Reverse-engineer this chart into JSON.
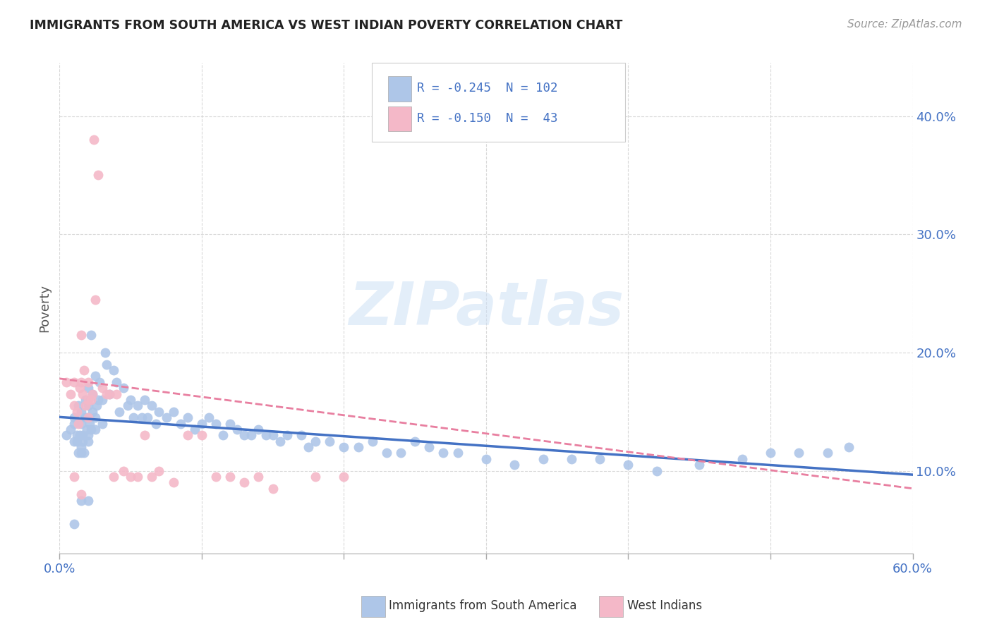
{
  "title": "IMMIGRANTS FROM SOUTH AMERICA VS WEST INDIAN POVERTY CORRELATION CHART",
  "source": "Source: ZipAtlas.com",
  "ylabel": "Poverty",
  "right_yticks": [
    0.1,
    0.2,
    0.3,
    0.4
  ],
  "right_yticklabels": [
    "10.0%",
    "20.0%",
    "30.0%",
    "40.0%"
  ],
  "xlim": [
    0.0,
    0.6
  ],
  "ylim": [
    0.03,
    0.445
  ],
  "watermark": "ZIPatlas",
  "color_blue": "#aec6e8",
  "color_pink": "#f4b8c8",
  "color_blue_dark": "#4472c4",
  "color_pink_dark": "#e87fa0",
  "color_text": "#4472c4",
  "background": "#ffffff",
  "grid_color": "#d0d0d0",
  "sa_x": [
    0.005,
    0.008,
    0.01,
    0.01,
    0.01,
    0.012,
    0.012,
    0.013,
    0.013,
    0.014,
    0.015,
    0.015,
    0.015,
    0.015,
    0.016,
    0.016,
    0.017,
    0.018,
    0.018,
    0.019,
    0.02,
    0.02,
    0.02,
    0.02,
    0.02,
    0.021,
    0.022,
    0.022,
    0.023,
    0.023,
    0.025,
    0.025,
    0.025,
    0.026,
    0.027,
    0.028,
    0.03,
    0.03,
    0.032,
    0.033,
    0.035,
    0.038,
    0.04,
    0.042,
    0.045,
    0.048,
    0.05,
    0.052,
    0.055,
    0.058,
    0.06,
    0.062,
    0.065,
    0.068,
    0.07,
    0.075,
    0.08,
    0.085,
    0.09,
    0.095,
    0.1,
    0.105,
    0.11,
    0.115,
    0.12,
    0.125,
    0.13,
    0.135,
    0.14,
    0.145,
    0.15,
    0.155,
    0.16,
    0.17,
    0.175,
    0.18,
    0.19,
    0.2,
    0.21,
    0.22,
    0.23,
    0.24,
    0.25,
    0.26,
    0.27,
    0.28,
    0.3,
    0.32,
    0.34,
    0.36,
    0.38,
    0.4,
    0.42,
    0.45,
    0.48,
    0.5,
    0.52,
    0.54,
    0.555,
    0.01,
    0.015,
    0.02
  ],
  "sa_y": [
    0.13,
    0.135,
    0.14,
    0.125,
    0.145,
    0.13,
    0.125,
    0.155,
    0.115,
    0.13,
    0.12,
    0.115,
    0.14,
    0.15,
    0.125,
    0.13,
    0.115,
    0.145,
    0.16,
    0.135,
    0.13,
    0.125,
    0.145,
    0.155,
    0.17,
    0.14,
    0.215,
    0.135,
    0.15,
    0.165,
    0.145,
    0.135,
    0.18,
    0.155,
    0.16,
    0.175,
    0.14,
    0.16,
    0.2,
    0.19,
    0.165,
    0.185,
    0.175,
    0.15,
    0.17,
    0.155,
    0.16,
    0.145,
    0.155,
    0.145,
    0.16,
    0.145,
    0.155,
    0.14,
    0.15,
    0.145,
    0.15,
    0.14,
    0.145,
    0.135,
    0.14,
    0.145,
    0.14,
    0.13,
    0.14,
    0.135,
    0.13,
    0.13,
    0.135,
    0.13,
    0.13,
    0.125,
    0.13,
    0.13,
    0.12,
    0.125,
    0.125,
    0.12,
    0.12,
    0.125,
    0.115,
    0.115,
    0.125,
    0.12,
    0.115,
    0.115,
    0.11,
    0.105,
    0.11,
    0.11,
    0.11,
    0.105,
    0.1,
    0.105,
    0.11,
    0.115,
    0.115,
    0.115,
    0.12,
    0.055,
    0.075,
    0.075
  ],
  "wi_x": [
    0.005,
    0.008,
    0.01,
    0.01,
    0.012,
    0.013,
    0.014,
    0.015,
    0.015,
    0.016,
    0.017,
    0.018,
    0.02,
    0.02,
    0.02,
    0.022,
    0.023,
    0.024,
    0.025,
    0.027,
    0.03,
    0.033,
    0.035,
    0.038,
    0.04,
    0.045,
    0.05,
    0.055,
    0.06,
    0.065,
    0.07,
    0.08,
    0.09,
    0.1,
    0.11,
    0.12,
    0.13,
    0.14,
    0.15,
    0.18,
    0.2,
    0.01,
    0.015
  ],
  "wi_y": [
    0.175,
    0.165,
    0.175,
    0.155,
    0.15,
    0.14,
    0.17,
    0.175,
    0.215,
    0.165,
    0.185,
    0.155,
    0.16,
    0.145,
    0.175,
    0.16,
    0.165,
    0.38,
    0.245,
    0.35,
    0.17,
    0.165,
    0.165,
    0.095,
    0.165,
    0.1,
    0.095,
    0.095,
    0.13,
    0.095,
    0.1,
    0.09,
    0.13,
    0.13,
    0.095,
    0.095,
    0.09,
    0.095,
    0.085,
    0.095,
    0.095,
    0.095,
    0.08
  ]
}
